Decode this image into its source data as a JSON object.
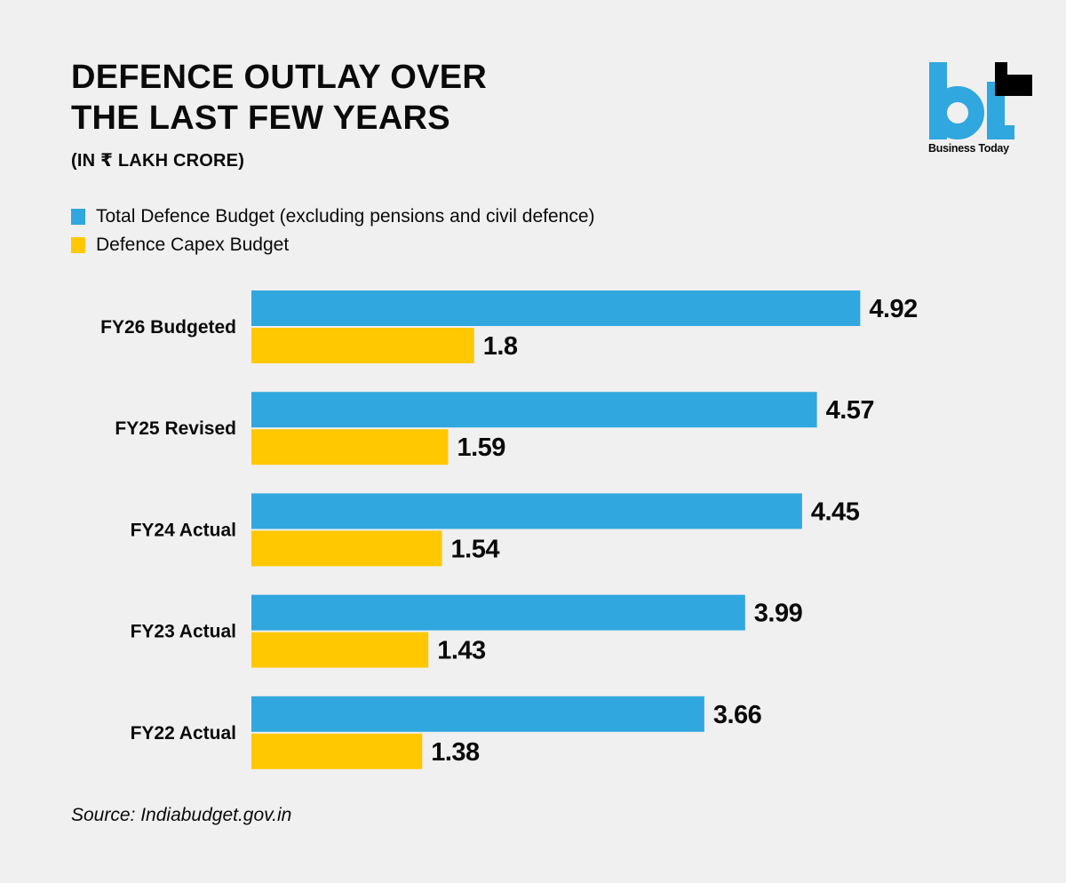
{
  "header": {
    "title_lines": [
      "DEFENCE OUTLAY OVER",
      "THE LAST FEW YEARS"
    ],
    "subtitle": "(IN ₹ LAKH CRORE)"
  },
  "logo": {
    "mark": "bt",
    "brand_name": "Business Today",
    "colors": {
      "primary": "#30a7de",
      "accent": "#000000"
    }
  },
  "legend": {
    "items": [
      {
        "label": "Total Defence Budget (excluding pensions and civil defence)",
        "color": "#30a7de"
      },
      {
        "label": "Defence Capex Budget",
        "color": "#ffc800"
      }
    ]
  },
  "chart_data": {
    "type": "bar",
    "orientation": "horizontal",
    "title": "DEFENCE OUTLAY OVER THE LAST FEW YEARS",
    "subtitle": "(IN ₹ LAKH CRORE)",
    "xlabel": "",
    "ylabel": "",
    "units": "₹ lakh crore",
    "xlim": [
      0,
      5.5
    ],
    "grid": false,
    "legend_position": "top-left",
    "categories": [
      "FY26 Budgeted",
      "FY25 Revised",
      "FY24 Actual",
      "FY23 Actual",
      "FY22 Actual"
    ],
    "series": [
      {
        "name": "Total Defence Budget (excluding pensions and civil defence)",
        "color": "#30a7de",
        "values": [
          4.92,
          4.57,
          4.45,
          3.99,
          3.66
        ],
        "labels": [
          "4.92",
          "4.57",
          "4.45",
          "3.99",
          "3.66"
        ]
      },
      {
        "name": "Defence Capex Budget",
        "color": "#ffc800",
        "values": [
          1.8,
          1.59,
          1.54,
          1.43,
          1.38
        ],
        "labels": [
          "1.8",
          "1.59",
          "1.54",
          "1.43",
          "1.38"
        ]
      }
    ]
  },
  "footer": {
    "source": "Source: Indiabudget.gov.in"
  }
}
